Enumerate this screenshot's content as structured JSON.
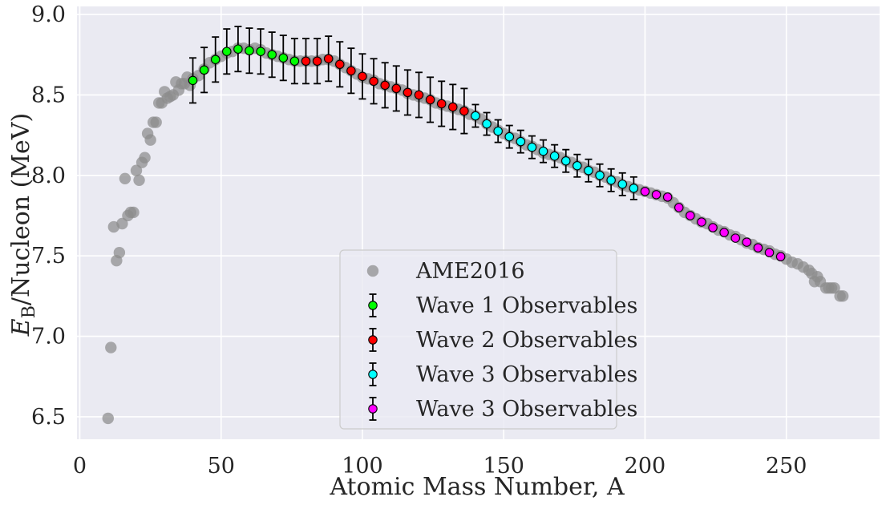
{
  "chart_data": {
    "type": "scatter",
    "xlabel": "Atomic Mass Number, A",
    "ylabel_main": "E",
    "ylabel_sub": "B",
    "ylabel_rest": "/Nucleon (MeV)",
    "xlim": [
      -1,
      283
    ],
    "ylim": [
      6.36,
      9.05
    ],
    "xticks": [
      0,
      50,
      100,
      150,
      200,
      250
    ],
    "yticks": [
      6.5,
      7.0,
      7.5,
      8.0,
      8.5,
      9.0
    ],
    "xtick_labels": [
      "0",
      "50",
      "100",
      "150",
      "200",
      "250"
    ],
    "ytick_labels": [
      "6.5",
      "7.0",
      "7.5",
      "8.0",
      "8.5",
      "9.0"
    ],
    "grid": true,
    "legend_position": "lower-center",
    "colors": {
      "background": "#eaeaf2",
      "grid": "#ffffff",
      "ame": "#8c8c8c",
      "wave1": "#00ff00",
      "wave2": "#ff0000",
      "wave3": "#00ffff",
      "wave3b": "#ff00ff"
    },
    "series": [
      {
        "name": "AME2016",
        "kind": "scatter",
        "points": [
          [
            10,
            6.49
          ],
          [
            11,
            6.93
          ],
          [
            12,
            7.68
          ],
          [
            13,
            7.47
          ],
          [
            14,
            7.52
          ],
          [
            15,
            7.7
          ],
          [
            16,
            7.98
          ],
          [
            17,
            7.75
          ],
          [
            18,
            7.77
          ],
          [
            19,
            7.77
          ],
          [
            20,
            8.03
          ],
          [
            21,
            7.97
          ],
          [
            22,
            8.08
          ],
          [
            23,
            8.11
          ],
          [
            24,
            8.26
          ],
          [
            25,
            8.22
          ],
          [
            26,
            8.33
          ],
          [
            27,
            8.33
          ],
          [
            28,
            8.45
          ],
          [
            29,
            8.45
          ],
          [
            30,
            8.52
          ],
          [
            31,
            8.48
          ],
          [
            32,
            8.49
          ],
          [
            33,
            8.5
          ],
          [
            34,
            8.58
          ],
          [
            35,
            8.53
          ],
          [
            36,
            8.57
          ],
          [
            37,
            8.57
          ],
          [
            38,
            8.61
          ],
          [
            39,
            8.56
          ],
          [
            40,
            8.6
          ],
          [
            42,
            8.62
          ],
          [
            44,
            8.66
          ],
          [
            46,
            8.7
          ],
          [
            48,
            8.72
          ],
          [
            50,
            8.74
          ],
          [
            52,
            8.76
          ],
          [
            54,
            8.77
          ],
          [
            56,
            8.79
          ],
          [
            58,
            8.79
          ],
          [
            60,
            8.78
          ],
          [
            62,
            8.79
          ],
          [
            64,
            8.78
          ],
          [
            66,
            8.76
          ],
          [
            68,
            8.75
          ],
          [
            70,
            8.74
          ],
          [
            72,
            8.73
          ],
          [
            74,
            8.72
          ],
          [
            76,
            8.71
          ],
          [
            78,
            8.71
          ],
          [
            80,
            8.71
          ],
          [
            82,
            8.71
          ],
          [
            84,
            8.71
          ],
          [
            86,
            8.72
          ],
          [
            88,
            8.72
          ],
          [
            90,
            8.71
          ],
          [
            92,
            8.69
          ],
          [
            94,
            8.67
          ],
          [
            96,
            8.65
          ],
          [
            98,
            8.63
          ],
          [
            100,
            8.61
          ],
          [
            102,
            8.6
          ],
          [
            104,
            8.59
          ],
          [
            106,
            8.57
          ],
          [
            108,
            8.56
          ],
          [
            110,
            8.55
          ],
          [
            112,
            8.54
          ],
          [
            114,
            8.53
          ],
          [
            116,
            8.51
          ],
          [
            118,
            8.5
          ],
          [
            120,
            8.49
          ],
          [
            122,
            8.48
          ],
          [
            124,
            8.47
          ],
          [
            126,
            8.45
          ],
          [
            128,
            8.44
          ],
          [
            130,
            8.43
          ],
          [
            132,
            8.42
          ],
          [
            134,
            8.41
          ],
          [
            136,
            8.4
          ],
          [
            138,
            8.38
          ],
          [
            140,
            8.37
          ],
          [
            142,
            8.35
          ],
          [
            144,
            8.32
          ],
          [
            146,
            8.3
          ],
          [
            148,
            8.28
          ],
          [
            150,
            8.26
          ],
          [
            152,
            8.24
          ],
          [
            154,
            8.23
          ],
          [
            156,
            8.21
          ],
          [
            158,
            8.19
          ],
          [
            160,
            8.18
          ],
          [
            162,
            8.16
          ],
          [
            164,
            8.14
          ],
          [
            166,
            8.13
          ],
          [
            168,
            8.12
          ],
          [
            170,
            8.11
          ],
          [
            172,
            8.09
          ],
          [
            174,
            8.08
          ],
          [
            176,
            8.06
          ],
          [
            178,
            8.05
          ],
          [
            180,
            8.03
          ],
          [
            182,
            8.02
          ],
          [
            184,
            8.0
          ],
          [
            186,
            7.99
          ],
          [
            188,
            7.97
          ],
          [
            190,
            7.96
          ],
          [
            192,
            7.94
          ],
          [
            194,
            7.93
          ],
          [
            196,
            7.92
          ],
          [
            198,
            7.91
          ],
          [
            200,
            7.9
          ],
          [
            202,
            7.89
          ],
          [
            204,
            7.88
          ],
          [
            206,
            7.87
          ],
          [
            208,
            7.86
          ],
          [
            210,
            7.83
          ],
          [
            212,
            7.8
          ],
          [
            214,
            7.77
          ],
          [
            216,
            7.75
          ],
          [
            218,
            7.73
          ],
          [
            220,
            7.71
          ],
          [
            222,
            7.7
          ],
          [
            224,
            7.68
          ],
          [
            226,
            7.66
          ],
          [
            228,
            7.65
          ],
          [
            230,
            7.63
          ],
          [
            232,
            7.62
          ],
          [
            234,
            7.6
          ],
          [
            236,
            7.58
          ],
          [
            238,
            7.57
          ],
          [
            240,
            7.55
          ],
          [
            242,
            7.54
          ],
          [
            244,
            7.53
          ],
          [
            246,
            7.51
          ],
          [
            248,
            7.5
          ],
          [
            250,
            7.48
          ],
          [
            252,
            7.46
          ],
          [
            254,
            7.45
          ],
          [
            256,
            7.43
          ],
          [
            258,
            7.41
          ],
          [
            259,
            7.39
          ],
          [
            260,
            7.34
          ],
          [
            261,
            7.37
          ],
          [
            262,
            7.34
          ],
          [
            264,
            7.3
          ],
          [
            265,
            7.3
          ],
          [
            266,
            7.3
          ],
          [
            267,
            7.3
          ],
          [
            269,
            7.25
          ],
          [
            270,
            7.25
          ]
        ]
      },
      {
        "name": "Wave 1 Observables",
        "kind": "errorbar",
        "points": [
          [
            40,
            8.59
          ],
          [
            44,
            8.655
          ],
          [
            48,
            8.72
          ],
          [
            52,
            8.77
          ],
          [
            56,
            8.785
          ],
          [
            60,
            8.775
          ],
          [
            64,
            8.77
          ],
          [
            68,
            8.75
          ],
          [
            72,
            8.73
          ],
          [
            76,
            8.71
          ]
        ],
        "errors": [
          0.14,
          0.14,
          0.14,
          0.14,
          0.14,
          0.14,
          0.14,
          0.14,
          0.14,
          0.14
        ]
      },
      {
        "name": "Wave 2 Observables",
        "kind": "errorbar",
        "points": [
          [
            80,
            8.71
          ],
          [
            84,
            8.71
          ],
          [
            88,
            8.725
          ],
          [
            92,
            8.69
          ],
          [
            96,
            8.65
          ],
          [
            100,
            8.615
          ],
          [
            104,
            8.585
          ],
          [
            108,
            8.56
          ],
          [
            112,
            8.54
          ],
          [
            116,
            8.515
          ],
          [
            120,
            8.5
          ],
          [
            124,
            8.47
          ],
          [
            128,
            8.445
          ],
          [
            132,
            8.425
          ],
          [
            136,
            8.4
          ]
        ],
        "errors": [
          0.14,
          0.14,
          0.14,
          0.14,
          0.14,
          0.14,
          0.14,
          0.14,
          0.14,
          0.14,
          0.14,
          0.14,
          0.14,
          0.14,
          0.14
        ]
      },
      {
        "name": "Wave 3 Observables",
        "kind": "errorbar",
        "points": [
          [
            140,
            8.37
          ],
          [
            144,
            8.32
          ],
          [
            148,
            8.275
          ],
          [
            152,
            8.24
          ],
          [
            156,
            8.21
          ],
          [
            160,
            8.175
          ],
          [
            164,
            8.15
          ],
          [
            168,
            8.12
          ],
          [
            172,
            8.09
          ],
          [
            176,
            8.06
          ],
          [
            180,
            8.03
          ],
          [
            184,
            8.0
          ],
          [
            188,
            7.97
          ],
          [
            192,
            7.945
          ],
          [
            196,
            7.92
          ]
        ],
        "errors": [
          0.07,
          0.07,
          0.07,
          0.07,
          0.07,
          0.07,
          0.07,
          0.07,
          0.07,
          0.07,
          0.07,
          0.07,
          0.07,
          0.07,
          0.07
        ]
      },
      {
        "name": "Wave 3 Observables",
        "kind": "errorbar",
        "points": [
          [
            200,
            7.9
          ],
          [
            204,
            7.88
          ],
          [
            208,
            7.865
          ],
          [
            212,
            7.8
          ],
          [
            216,
            7.75
          ],
          [
            220,
            7.71
          ],
          [
            224,
            7.675
          ],
          [
            228,
            7.645
          ],
          [
            232,
            7.61
          ],
          [
            236,
            7.585
          ],
          [
            240,
            7.55
          ],
          [
            244,
            7.52
          ],
          [
            248,
            7.495
          ]
        ],
        "errors": [
          0.0,
          0.0,
          0.0,
          0.0,
          0.0,
          0.0,
          0.0,
          0.0,
          0.0,
          0.0,
          0.0,
          0.0,
          0.0
        ]
      }
    ]
  }
}
